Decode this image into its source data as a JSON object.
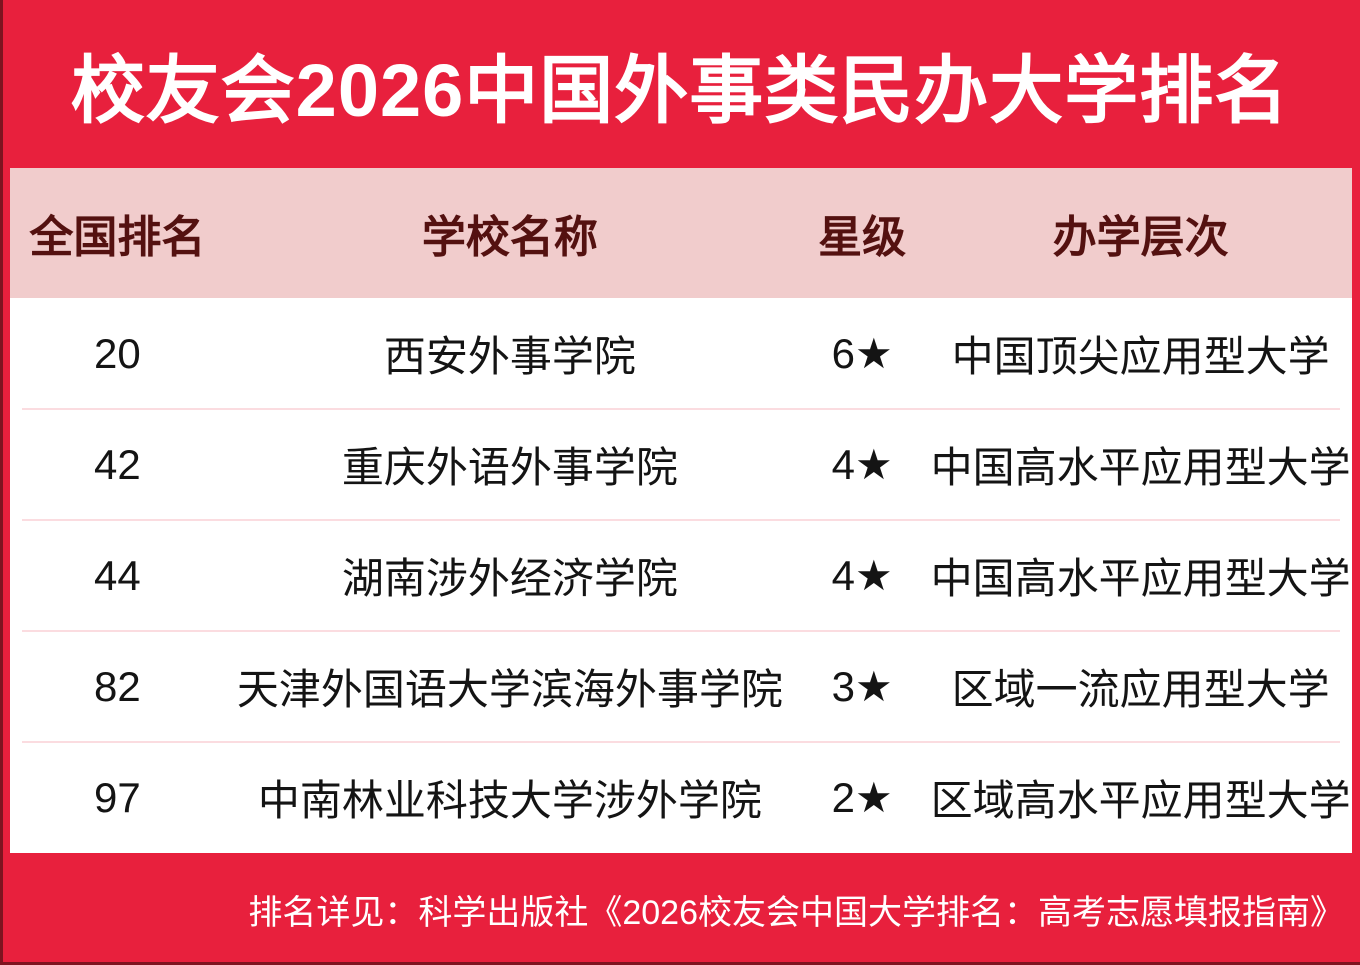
{
  "chart_data": {
    "type": "table",
    "title": "校友会2026中国外事类民办大学排名",
    "columns": [
      "全国排名",
      "学校名称",
      "星级",
      "办学层次"
    ],
    "rows": [
      [
        "20",
        "西安外事学院",
        "6★",
        "中国顶尖应用型大学"
      ],
      [
        "42",
        "重庆外语外事学院",
        "4★",
        "中国高水平应用型大学"
      ],
      [
        "44",
        "湖南涉外经济学院",
        "4★",
        "中国高水平应用型大学"
      ],
      [
        "82",
        "天津外国语大学滨海外事学院",
        "3★",
        "区域一流应用型大学"
      ],
      [
        "97",
        "中南林业科技大学涉外学院",
        "2★",
        "区域高水平应用型大学"
      ]
    ],
    "footnote": "排名详见：科学出版社《2026校友会中国大学排名：高考志愿填报指南》",
    "layout": {
      "header_row": "pink band with dark maroon bold labels",
      "body": "white rows separated by thin pink divider lines",
      "footnote_position": "bottom-right on red background"
    }
  },
  "colors": {
    "background_red": "#E8203D",
    "edge_dark_red": "#7E1420",
    "header_pink": "#F1CCCC",
    "header_text_maroon": "#541110",
    "row_divider_pink": "#FBDCE0",
    "row_text": "#141414",
    "title_text": "#FFFFFF",
    "footer_text": "#FFFFFF"
  }
}
